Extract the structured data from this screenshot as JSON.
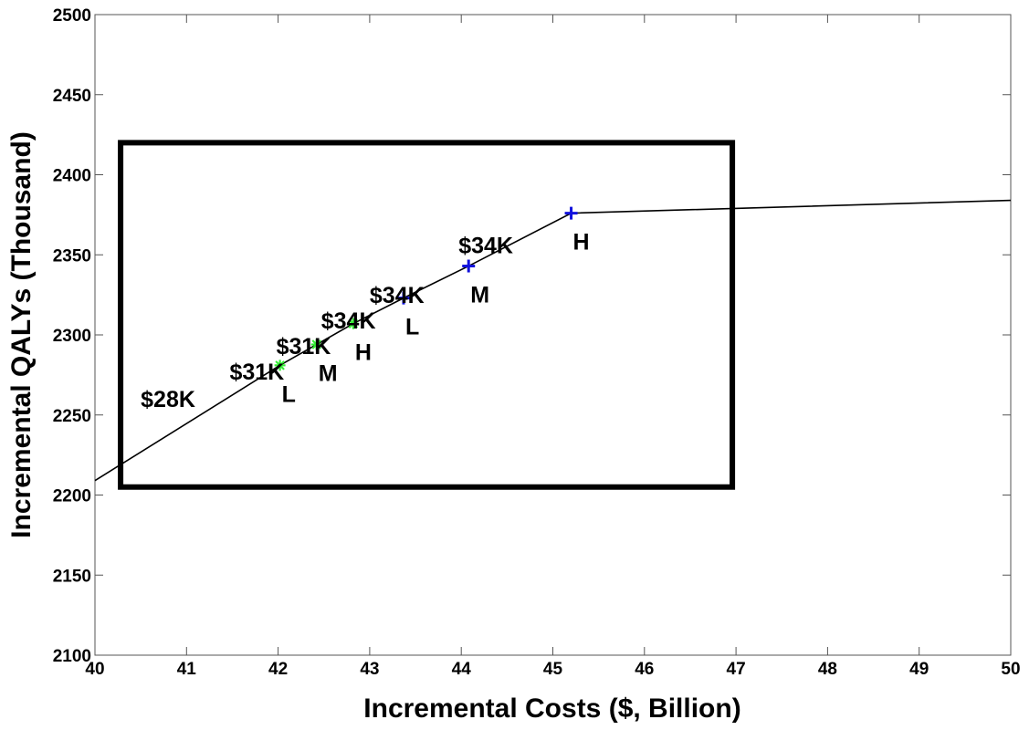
{
  "chart_data": {
    "type": "line",
    "title": "",
    "xlabel": "Incremental Costs ($, Billion)",
    "ylabel": "Incremental QALYs (Thousand)",
    "xlim": [
      40,
      50
    ],
    "ylim": [
      2100,
      2500
    ],
    "x_ticks": [
      "40",
      "41",
      "42",
      "43",
      "44",
      "45",
      "46",
      "47",
      "48",
      "49",
      "50"
    ],
    "y_ticks": [
      "2100",
      "2150",
      "2200",
      "2250",
      "2300",
      "2350",
      "2400",
      "2450",
      "2500"
    ],
    "grid": false,
    "frontier_line": {
      "color": "#000000",
      "points": [
        {
          "x": 40.0,
          "y": 2209
        },
        {
          "x": 42.02,
          "y": 2281
        },
        {
          "x": 42.42,
          "y": 2294
        },
        {
          "x": 42.82,
          "y": 2307
        },
        {
          "x": 43.37,
          "y": 2323
        },
        {
          "x": 44.08,
          "y": 2343
        },
        {
          "x": 45.2,
          "y": 2376
        },
        {
          "x": 50.0,
          "y": 2384
        }
      ]
    },
    "markers": [
      {
        "group": "green",
        "symbol": "asterisk",
        "color": "#33ee33",
        "x": 42.02,
        "y": 2281,
        "label": "L"
      },
      {
        "group": "green",
        "symbol": "asterisk",
        "color": "#33ee33",
        "x": 42.42,
        "y": 2294,
        "label": "M"
      },
      {
        "group": "green",
        "symbol": "asterisk",
        "color": "#33ee33",
        "x": 42.82,
        "y": 2307,
        "label": "H"
      },
      {
        "group": "blue",
        "symbol": "plus",
        "color": "#1111dd",
        "x": 43.37,
        "y": 2323,
        "label": "L"
      },
      {
        "group": "blue",
        "symbol": "plus",
        "color": "#1111dd",
        "x": 44.08,
        "y": 2343,
        "label": "M"
      },
      {
        "group": "blue",
        "symbol": "plus",
        "color": "#1111dd",
        "x": 45.2,
        "y": 2376,
        "label": "H"
      }
    ],
    "annotations": [
      {
        "text": "$28K",
        "x": 40.5,
        "y": 2255
      },
      {
        "text": "$31K",
        "x": 41.47,
        "y": 2272
      },
      {
        "text": "$31K",
        "x": 41.98,
        "y": 2288
      },
      {
        "text": "$34K",
        "x": 42.47,
        "y": 2304
      },
      {
        "text": "$34K",
        "x": 43.0,
        "y": 2320
      },
      {
        "text": "$34K",
        "x": 43.97,
        "y": 2351
      }
    ],
    "highlight_box": {
      "x0": 40.28,
      "x1": 46.96,
      "y0": 2205,
      "y1": 2420,
      "color": "#000000"
    }
  }
}
